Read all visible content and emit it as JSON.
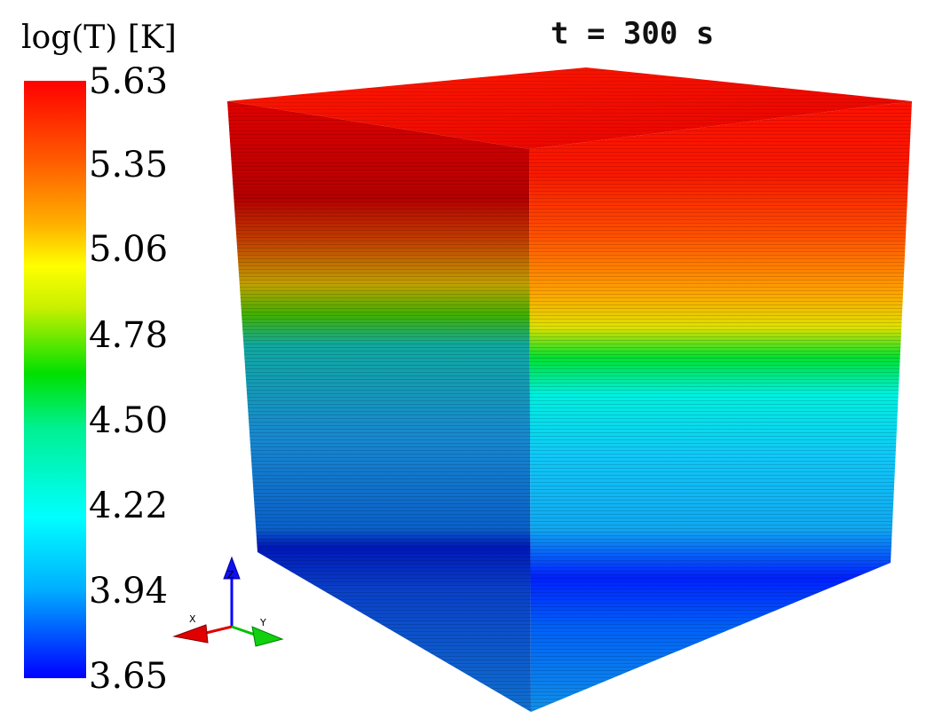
{
  "colorbar": {
    "title": "log(T) [K]",
    "ticks": [
      "5.63",
      "5.35",
      "5.06",
      "4.78",
      "4.50",
      "4.22",
      "3.94",
      "3.65"
    ]
  },
  "time_label": "t = 300 s",
  "axes": {
    "x": "X",
    "y": "Y",
    "z": "Z"
  }
}
